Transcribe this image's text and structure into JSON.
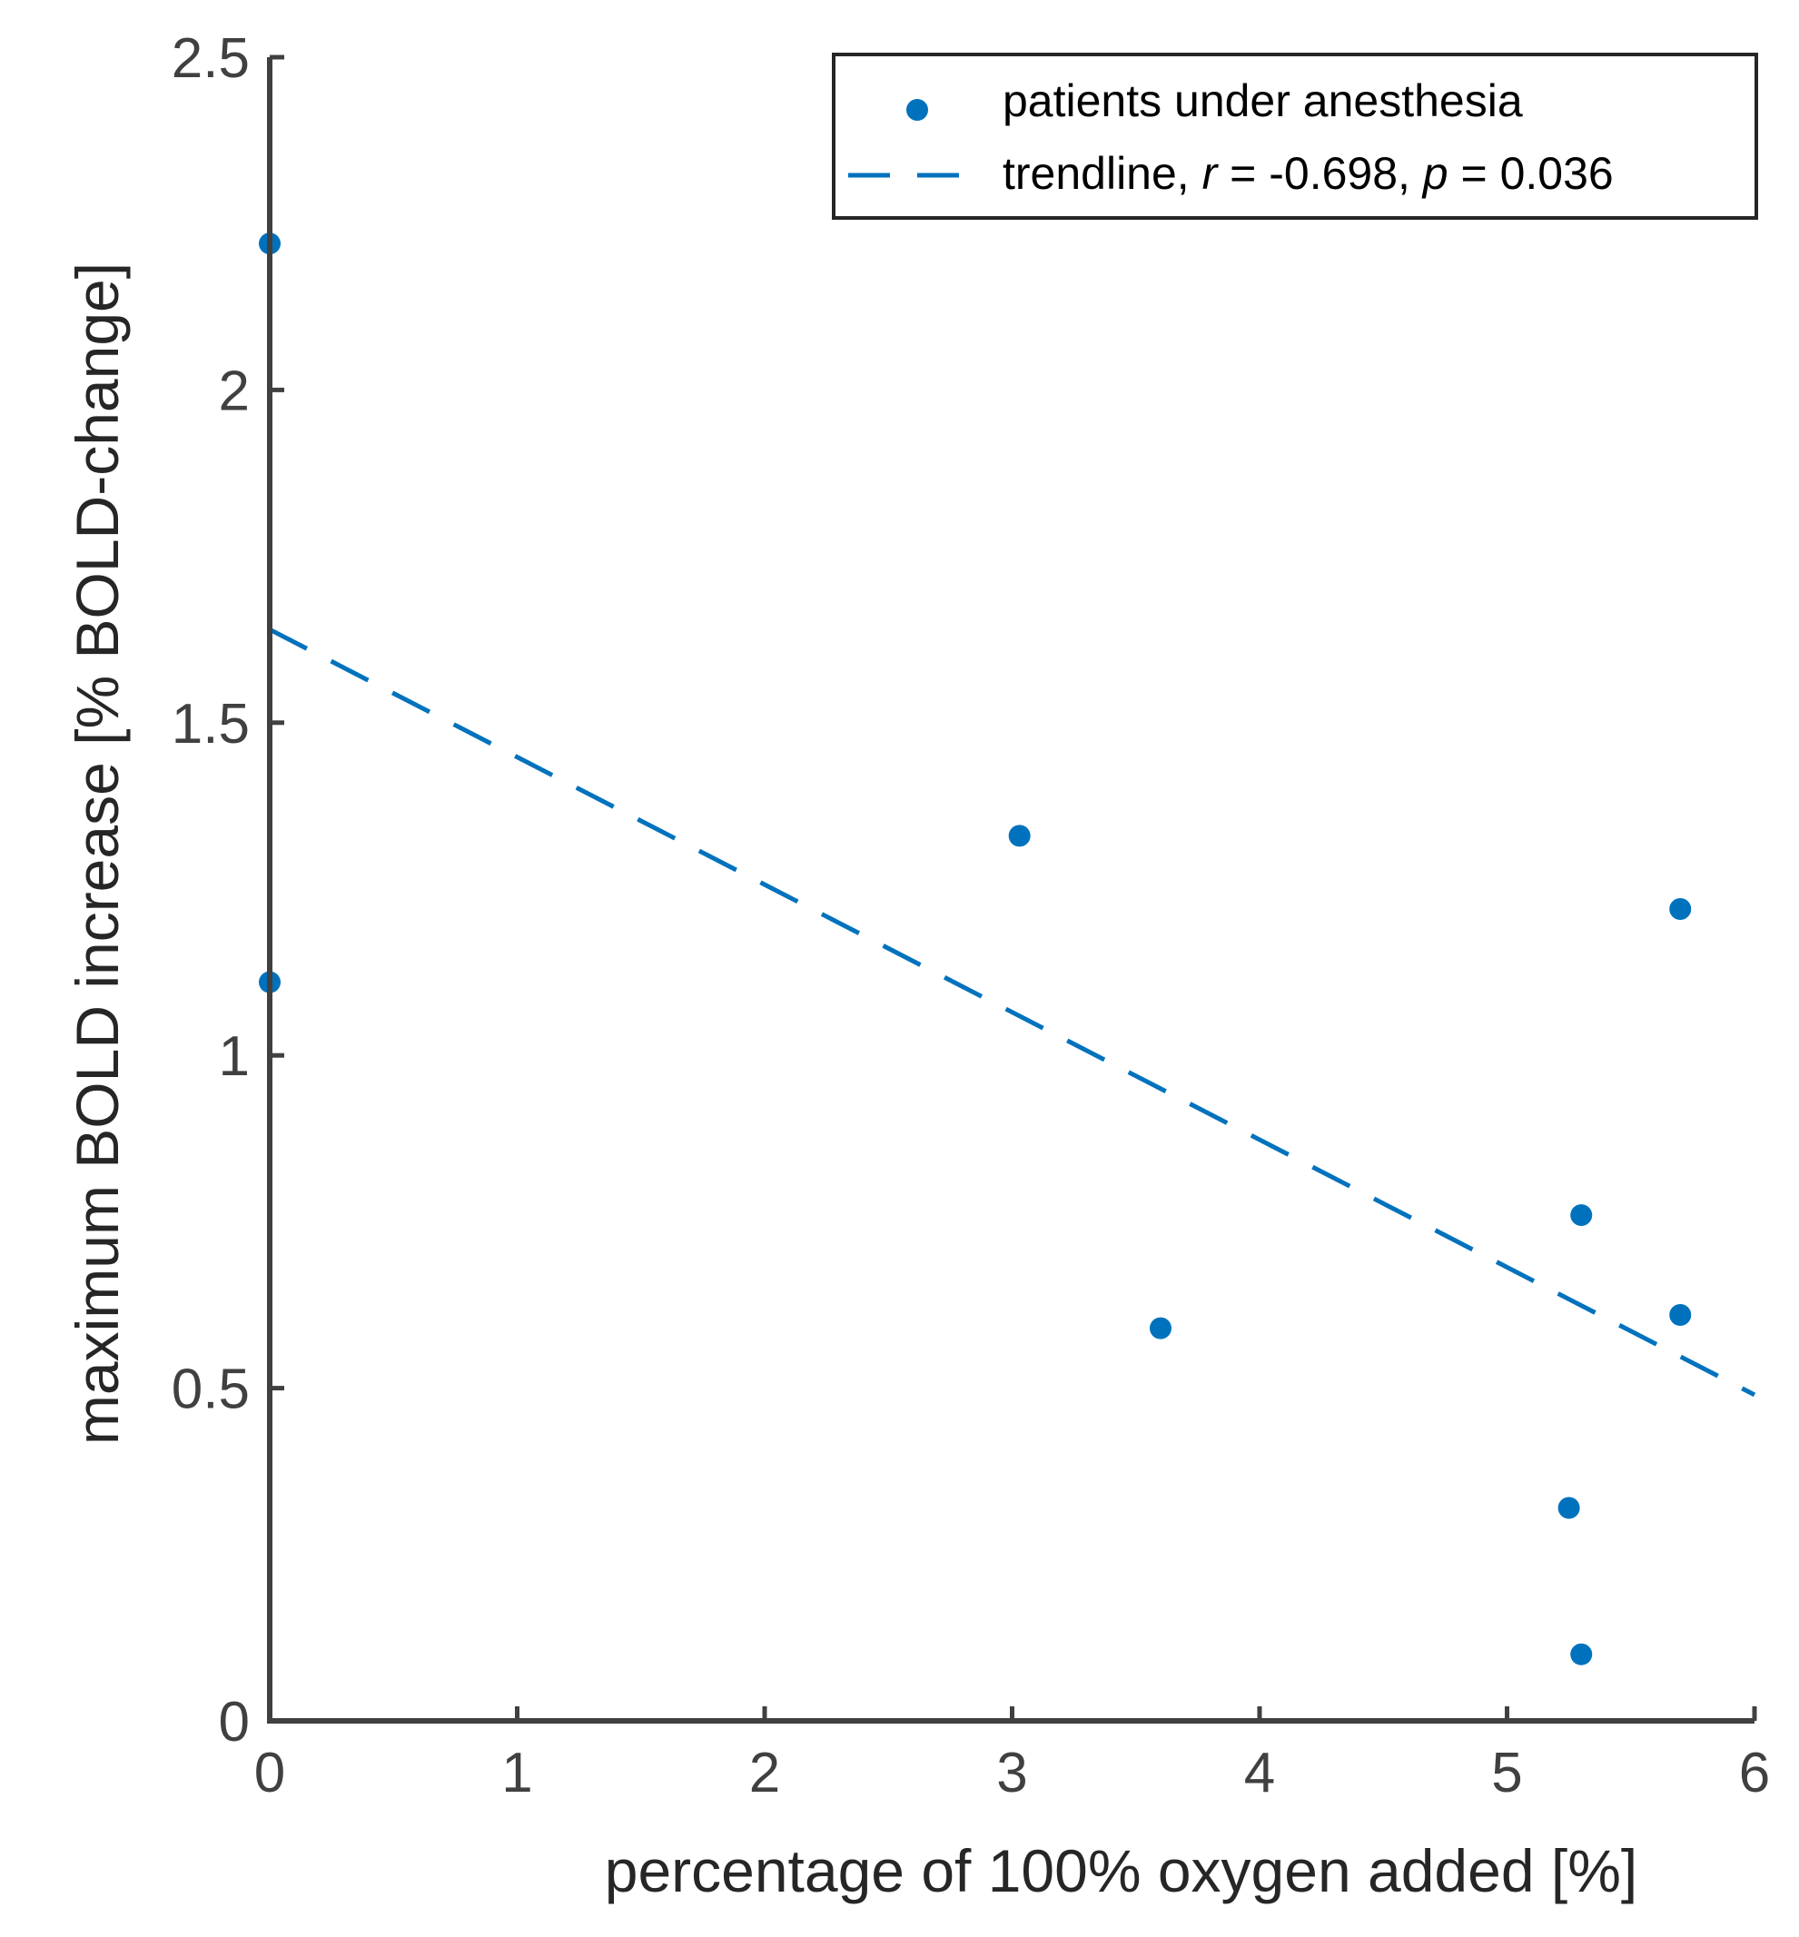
{
  "chart_data": {
    "type": "scatter",
    "title": "",
    "xlabel": "percentage of 100% oxygen added [%]",
    "ylabel": "maximum BOLD increase [% BOLD-change]",
    "xlim": [
      0,
      6
    ],
    "ylim": [
      0,
      2.5
    ],
    "xticks": [
      "0",
      "1",
      "2",
      "3",
      "4",
      "5",
      "6"
    ],
    "yticks": [
      "0",
      "0.5",
      "1",
      "1.5",
      "2",
      "2.5"
    ],
    "grid": false,
    "legend_position": "top-right",
    "series": [
      {
        "name": "patients under anesthesia",
        "kind": "scatter",
        "color": "#0072BD",
        "points": [
          {
            "x": 0.0,
            "y": 2.22
          },
          {
            "x": 0.0,
            "y": 1.11
          },
          {
            "x": 3.03,
            "y": 1.33
          },
          {
            "x": 3.6,
            "y": 0.59
          },
          {
            "x": 5.25,
            "y": 0.32
          },
          {
            "x": 5.3,
            "y": 0.76
          },
          {
            "x": 5.3,
            "y": 0.1
          },
          {
            "x": 5.7,
            "y": 1.22
          },
          {
            "x": 5.7,
            "y": 0.61
          }
        ]
      },
      {
        "name": "trendline",
        "kind": "dashed-line",
        "color": "#0072BD",
        "line": {
          "x": [
            0,
            6
          ],
          "y": [
            1.64,
            0.49
          ]
        },
        "legend_parts": [
          {
            "text": "trendline, ",
            "italic": false
          },
          {
            "text": "r",
            "italic": true
          },
          {
            "text": " = -0.698, ",
            "italic": false
          },
          {
            "text": "p",
            "italic": true
          },
          {
            "text": " = 0.036",
            "italic": false
          }
        ]
      }
    ]
  }
}
